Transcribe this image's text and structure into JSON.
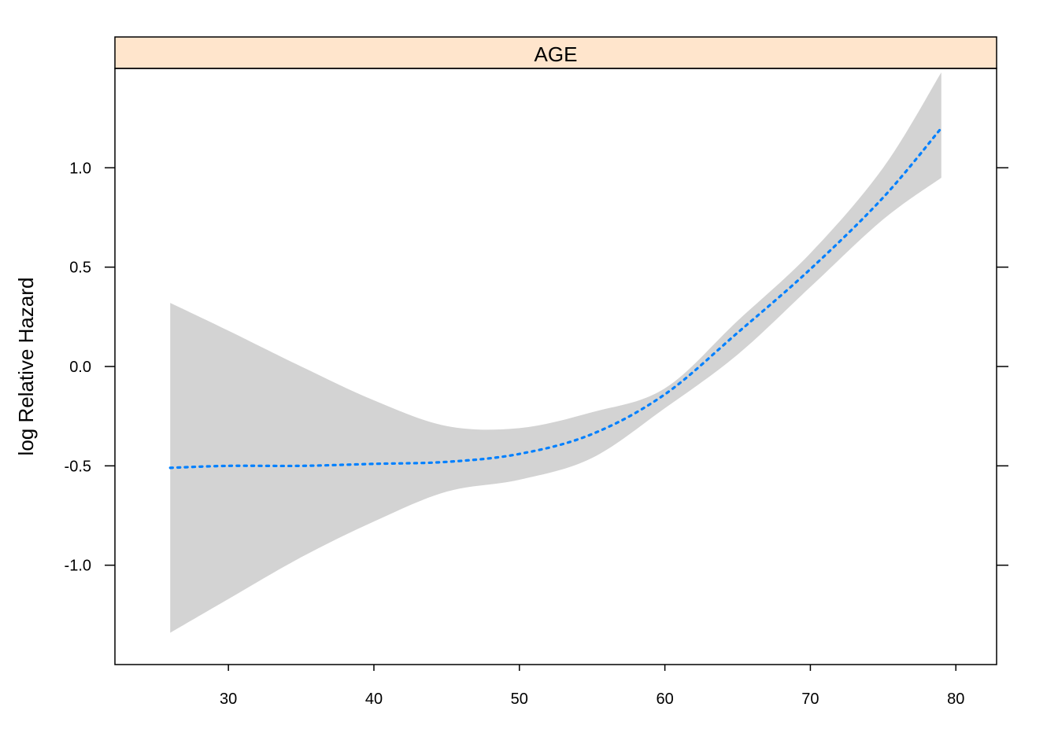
{
  "chart_data": {
    "type": "line",
    "panel_title": "AGE",
    "xlabel": "",
    "ylabel": "log Relative Hazard",
    "xlim": [
      22.2,
      82.8
    ],
    "ylim": [
      -1.5,
      1.5
    ],
    "xticks": [
      30,
      40,
      50,
      60,
      70,
      80
    ],
    "yticks": [
      -1.0,
      -0.5,
      0.0,
      0.5,
      1.0
    ],
    "ytick_labels": [
      "-1.0",
      "-0.5",
      "0.0",
      "0.5",
      "1.0"
    ],
    "grid": false,
    "colors": {
      "strip_fill": "#FFE5CC",
      "band_fill": "#D3D3D3",
      "line": "#0080FF"
    },
    "series": [
      {
        "style": "dotted",
        "x": [
          26,
          30,
          35,
          40,
          45,
          50,
          55,
          60,
          65,
          70,
          75,
          79
        ],
        "y": [
          -0.51,
          -0.5,
          -0.5,
          -0.49,
          -0.48,
          -0.44,
          -0.34,
          -0.14,
          0.17,
          0.49,
          0.85,
          1.2
        ],
        "lower": [
          -1.34,
          -1.17,
          -0.96,
          -0.78,
          -0.63,
          -0.57,
          -0.46,
          -0.21,
          0.06,
          0.4,
          0.74,
          0.95
        ],
        "upper": [
          0.32,
          0.18,
          0.0,
          -0.17,
          -0.3,
          -0.31,
          -0.23,
          -0.11,
          0.23,
          0.57,
          1.0,
          1.48
        ]
      }
    ]
  }
}
